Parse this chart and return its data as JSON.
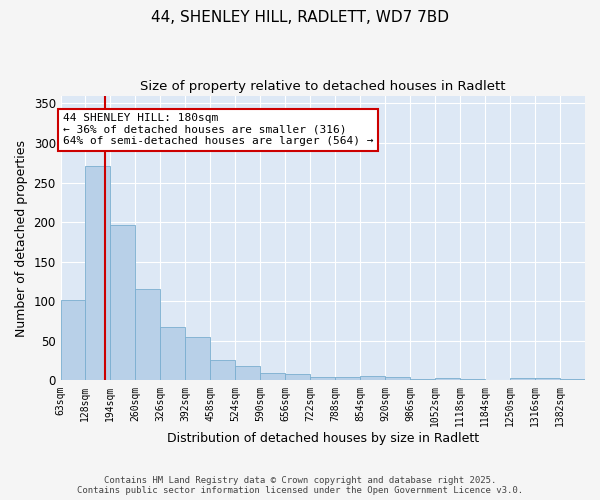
{
  "title1": "44, SHENLEY HILL, RADLETT, WD7 7BD",
  "title2": "Size of property relative to detached houses in Radlett",
  "xlabel": "Distribution of detached houses by size in Radlett",
  "ylabel": "Number of detached properties",
  "bin_edges": [
    63,
    128,
    194,
    260,
    326,
    392,
    458,
    524,
    590,
    656,
    722,
    788,
    854,
    920,
    986,
    1052,
    1118,
    1184,
    1250,
    1316,
    1382,
    1448
  ],
  "bar_heights": [
    102,
    271,
    197,
    115,
    68,
    55,
    26,
    18,
    9,
    8,
    5,
    5,
    6,
    5,
    2,
    3,
    2,
    0,
    3,
    3,
    2
  ],
  "bar_color": "#b8d0e8",
  "bar_edge_color": "#7aaed0",
  "property_size": 180,
  "red_line_color": "#cc0000",
  "annotation_line1": "44 SHENLEY HILL: 180sqm",
  "annotation_line2": "← 36% of detached houses are smaller (316)",
  "annotation_line3": "64% of semi-detached houses are larger (564) →",
  "annotation_box_color": "#ffffff",
  "annotation_box_edge": "#cc0000",
  "ylim": [
    0,
    360
  ],
  "yticks": [
    0,
    50,
    100,
    150,
    200,
    250,
    300,
    350
  ],
  "footer_line1": "Contains HM Land Registry data © Crown copyright and database right 2025.",
  "footer_line2": "Contains public sector information licensed under the Open Government Licence v3.0.",
  "bg_color": "#f5f5f5",
  "plot_bg_color": "#dde8f5"
}
